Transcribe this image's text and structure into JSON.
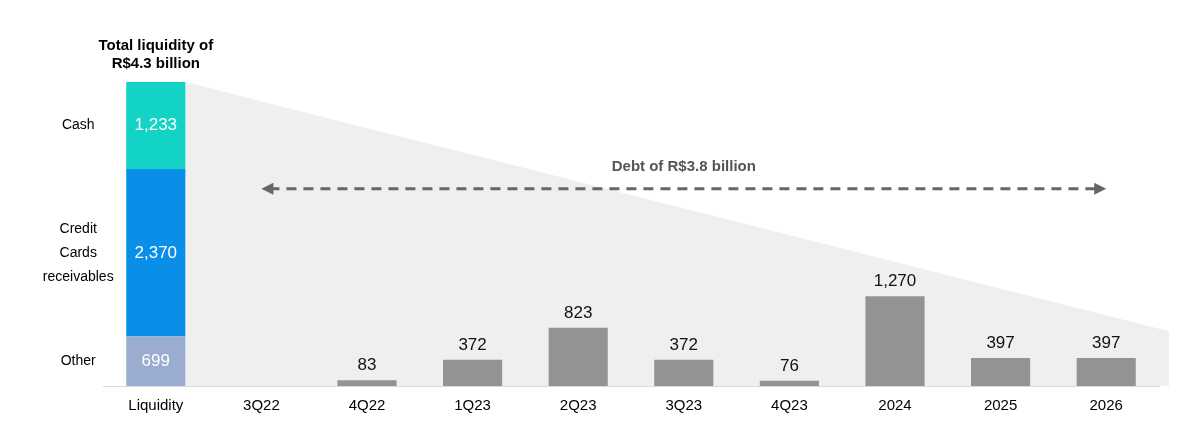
{
  "chart_data": {
    "type": "bar",
    "title": "Total liquidity of R$4.3 billion",
    "stacked": true,
    "legend": false,
    "grid": false,
    "categories": [
      "Liquidity",
      "3Q22",
      "4Q22",
      "1Q23",
      "2Q23",
      "3Q23",
      "4Q23",
      "2024",
      "2025",
      "2026"
    ],
    "series": [
      {
        "name": "Other",
        "color": "#9aadd0",
        "values": [
          699,
          null,
          null,
          null,
          null,
          null,
          null,
          null,
          null,
          null
        ],
        "value_labels": [
          "699",
          null,
          null,
          null,
          null,
          null,
          null,
          null,
          null,
          null
        ]
      },
      {
        "name": "Credit Cards receivables",
        "color": "#0a8fe8",
        "values": [
          2370,
          null,
          null,
          null,
          null,
          null,
          null,
          null,
          null,
          null
        ],
        "value_labels": [
          "2,370",
          null,
          null,
          null,
          null,
          null,
          null,
          null,
          null,
          null
        ]
      },
      {
        "name": "Cash",
        "color": "#12d3c6",
        "values": [
          1233,
          null,
          null,
          null,
          null,
          null,
          null,
          null,
          null,
          null
        ],
        "value_labels": [
          "1,233",
          null,
          null,
          null,
          null,
          null,
          null,
          null,
          null,
          null
        ]
      },
      {
        "color": "#939393",
        "values": [
          null,
          null,
          83,
          372,
          823,
          372,
          76,
          1270,
          397,
          397
        ],
        "value_labels": [
          null,
          null,
          "83",
          "372",
          "823",
          "372",
          "76",
          "1,270",
          "397",
          "397"
        ]
      }
    ],
    "annotations": [
      "Debt of R$3.8 billion"
    ]
  }
}
